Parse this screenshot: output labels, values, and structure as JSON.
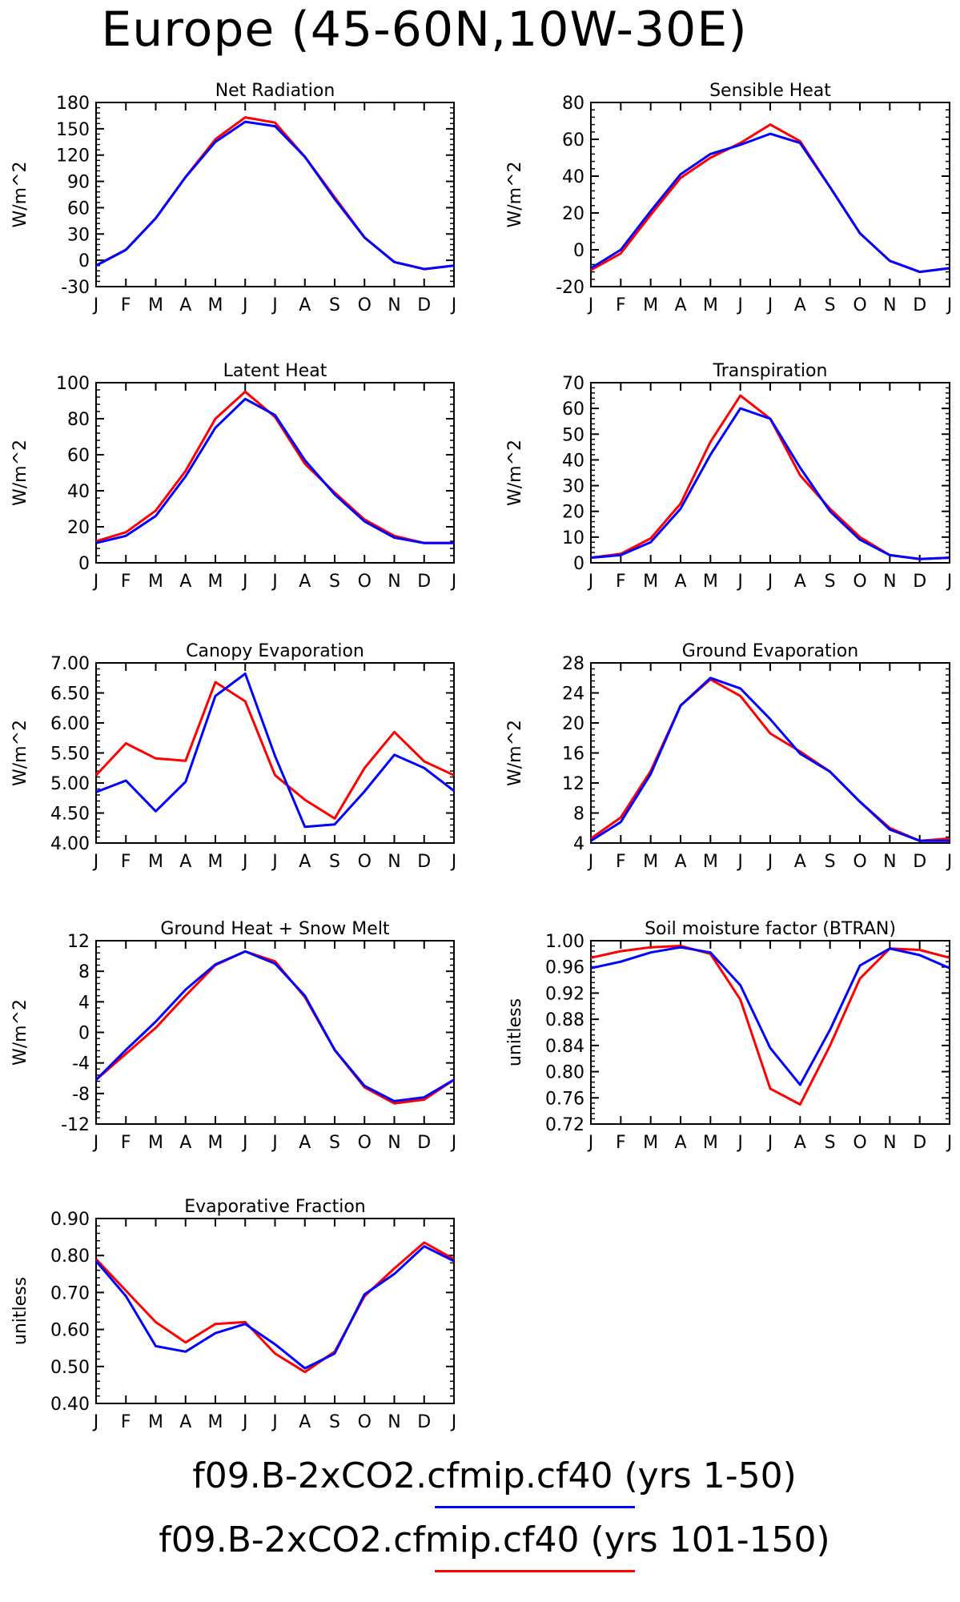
{
  "page": {
    "title": "Europe (45-60N,10W-30E)"
  },
  "colors": {
    "series_1": "#0000ff",
    "series_2": "#ff0000"
  },
  "legend": [
    {
      "label": "f09.B-2xCO2.cfmip.cf40 (yrs 1-50)",
      "color": "#0000ff"
    },
    {
      "label": "f09.B-2xCO2.cfmip.cf40 (yrs 101-150)",
      "color": "#ff0000"
    }
  ],
  "chart_data": [
    {
      "type": "line",
      "title": "Net Radiation",
      "ylabel": "W/m^2",
      "categories": [
        "J",
        "F",
        "M",
        "A",
        "M",
        "J",
        "J",
        "A",
        "S",
        "O",
        "N",
        "D",
        "J"
      ],
      "ylim": [
        -30,
        180
      ],
      "yticks": [
        "-30",
        "0",
        "30",
        "60",
        "90",
        "120",
        "150",
        "180"
      ],
      "series": [
        {
          "name": "yrs 1-50",
          "values": [
            -6,
            12,
            48,
            95,
            135,
            158,
            153,
            118,
            70,
            26,
            -2,
            -10,
            -6
          ]
        },
        {
          "name": "yrs 101-150",
          "values": [
            -6,
            12,
            48,
            95,
            138,
            163,
            157,
            118,
            72,
            26,
            -2,
            -10,
            -6
          ]
        }
      ]
    },
    {
      "type": "line",
      "title": "Sensible Heat",
      "ylabel": "W/m^2",
      "categories": [
        "J",
        "F",
        "M",
        "A",
        "M",
        "J",
        "J",
        "A",
        "S",
        "O",
        "N",
        "D",
        "J"
      ],
      "ylim": [
        -20,
        80
      ],
      "yticks": [
        "-20",
        "0",
        "20",
        "40",
        "60",
        "80"
      ],
      "series": [
        {
          "name": "yrs 1-50",
          "values": [
            -10,
            0,
            21,
            41,
            52,
            57,
            63,
            58,
            34,
            9,
            -6,
            -12,
            -10
          ]
        },
        {
          "name": "yrs 101-150",
          "values": [
            -11,
            -2,
            19,
            39,
            50,
            58,
            68,
            59,
            34,
            9,
            -6,
            -12,
            -10
          ]
        }
      ]
    },
    {
      "type": "line",
      "title": "Latent Heat",
      "ylabel": "W/m^2",
      "categories": [
        "J",
        "F",
        "M",
        "A",
        "M",
        "J",
        "J",
        "A",
        "S",
        "O",
        "N",
        "D",
        "J"
      ],
      "ylim": [
        0,
        100
      ],
      "yticks": [
        "0",
        "20",
        "40",
        "60",
        "80",
        "100"
      ],
      "series": [
        {
          "name": "yrs 1-50",
          "values": [
            11,
            15,
            26,
            48,
            75,
            91,
            82,
            57,
            38,
            23,
            14,
            11,
            11
          ]
        },
        {
          "name": "yrs 101-150",
          "values": [
            12,
            17,
            29,
            51,
            80,
            95,
            81,
            55,
            39,
            24,
            15,
            11,
            11
          ]
        }
      ]
    },
    {
      "type": "line",
      "title": "Transpiration",
      "ylabel": "W/m^2",
      "categories": [
        "J",
        "F",
        "M",
        "A",
        "M",
        "J",
        "J",
        "A",
        "S",
        "O",
        "N",
        "D",
        "J"
      ],
      "ylim": [
        0,
        70
      ],
      "yticks": [
        "0",
        "10",
        "20",
        "30",
        "40",
        "50",
        "60",
        "70"
      ],
      "series": [
        {
          "name": "yrs 1-50",
          "values": [
            2,
            3,
            8,
            21,
            42,
            60,
            56,
            37,
            20,
            9,
            3,
            1.5,
            2
          ]
        },
        {
          "name": "yrs 101-150",
          "values": [
            2,
            3.5,
            9.5,
            23,
            47,
            65,
            56,
            34,
            21,
            10,
            3,
            1.5,
            2
          ]
        }
      ]
    },
    {
      "type": "line",
      "title": "Canopy Evaporation",
      "ylabel": "W/m^2",
      "categories": [
        "J",
        "F",
        "M",
        "A",
        "M",
        "J",
        "J",
        "A",
        "S",
        "O",
        "N",
        "D",
        "J"
      ],
      "ylim": [
        4.0,
        7.0
      ],
      "yticks": [
        "4.00",
        "4.50",
        "5.00",
        "5.50",
        "6.00",
        "6.50",
        "7.00"
      ],
      "series": [
        {
          "name": "yrs 1-50",
          "values": [
            4.85,
            5.04,
            4.53,
            5.02,
            6.45,
            6.82,
            5.45,
            4.27,
            4.31,
            4.86,
            5.47,
            5.25,
            4.87
          ]
        },
        {
          "name": "yrs 101-150",
          "values": [
            5.13,
            5.66,
            5.41,
            5.37,
            6.68,
            6.36,
            5.13,
            4.72,
            4.41,
            5.25,
            5.85,
            5.36,
            5.13
          ]
        }
      ]
    },
    {
      "type": "line",
      "title": "Ground Evaporation",
      "ylabel": "W/m^2",
      "categories": [
        "J",
        "F",
        "M",
        "A",
        "M",
        "J",
        "J",
        "A",
        "S",
        "O",
        "N",
        "D",
        "J"
      ],
      "ylim": [
        4,
        28
      ],
      "yticks": [
        "4",
        "8",
        "12",
        "16",
        "20",
        "24",
        "28"
      ],
      "series": [
        {
          "name": "yrs 1-50",
          "values": [
            4.3,
            6.8,
            13.2,
            22.3,
            26.0,
            24.6,
            20.5,
            15.9,
            13.5,
            9.5,
            5.8,
            4.3,
            4.3
          ]
        },
        {
          "name": "yrs 101-150",
          "values": [
            4.6,
            7.4,
            13.6,
            22.3,
            25.8,
            23.6,
            18.6,
            16.2,
            13.5,
            9.5,
            6.0,
            4.3,
            4.6
          ]
        }
      ]
    },
    {
      "type": "line",
      "title": "Ground Heat + Snow Melt",
      "ylabel": "W/m^2",
      "categories": [
        "J",
        "F",
        "M",
        "A",
        "M",
        "J",
        "J",
        "A",
        "S",
        "O",
        "N",
        "D",
        "J"
      ],
      "ylim": [
        -12,
        12
      ],
      "yticks": [
        "-12",
        "-8",
        "-4",
        "0",
        "4",
        "8",
        "12"
      ],
      "series": [
        {
          "name": "yrs 1-50",
          "values": [
            -6.2,
            -2.3,
            1.4,
            5.6,
            8.9,
            10.6,
            9.0,
            4.8,
            -2.3,
            -7.0,
            -9.0,
            -8.5,
            -6.2
          ]
        },
        {
          "name": "yrs 101-150",
          "values": [
            -6.2,
            -2.8,
            0.6,
            4.8,
            8.8,
            10.6,
            9.3,
            4.6,
            -2.3,
            -7.2,
            -9.3,
            -8.8,
            -6.2
          ]
        }
      ]
    },
    {
      "type": "line",
      "title": "Soil moisture factor (BTRAN)",
      "ylabel": "unitless",
      "categories": [
        "J",
        "F",
        "M",
        "A",
        "M",
        "J",
        "J",
        "A",
        "S",
        "O",
        "N",
        "D",
        "J"
      ],
      "ylim": [
        0.72,
        1.0
      ],
      "yticks": [
        "0.72",
        "0.76",
        "0.80",
        "0.84",
        "0.88",
        "0.92",
        "0.96",
        "1.00"
      ],
      "series": [
        {
          "name": "yrs 1-50",
          "values": [
            0.958,
            0.968,
            0.982,
            0.99,
            0.982,
            0.932,
            0.836,
            0.78,
            0.864,
            0.962,
            0.988,
            0.978,
            0.958
          ]
        },
        {
          "name": "yrs 101-150",
          "values": [
            0.974,
            0.984,
            0.99,
            0.992,
            0.98,
            0.91,
            0.774,
            0.75,
            0.84,
            0.942,
            0.988,
            0.986,
            0.974
          ]
        }
      ]
    },
    {
      "type": "line",
      "title": "Evaporative Fraction",
      "ylabel": "unitless",
      "categories": [
        "J",
        "F",
        "M",
        "A",
        "M",
        "J",
        "J",
        "A",
        "S",
        "O",
        "N",
        "D",
        "J"
      ],
      "ylim": [
        0.4,
        0.9
      ],
      "yticks": [
        "0.40",
        "0.50",
        "0.60",
        "0.70",
        "0.80",
        "0.90"
      ],
      "series": [
        {
          "name": "yrs 1-50",
          "values": [
            0.785,
            0.69,
            0.555,
            0.54,
            0.59,
            0.615,
            0.56,
            0.495,
            0.535,
            0.695,
            0.75,
            0.825,
            0.785
          ]
        },
        {
          "name": "yrs 101-150",
          "values": [
            0.79,
            0.705,
            0.62,
            0.565,
            0.615,
            0.62,
            0.535,
            0.485,
            0.54,
            0.69,
            0.765,
            0.835,
            0.79
          ]
        }
      ]
    }
  ]
}
